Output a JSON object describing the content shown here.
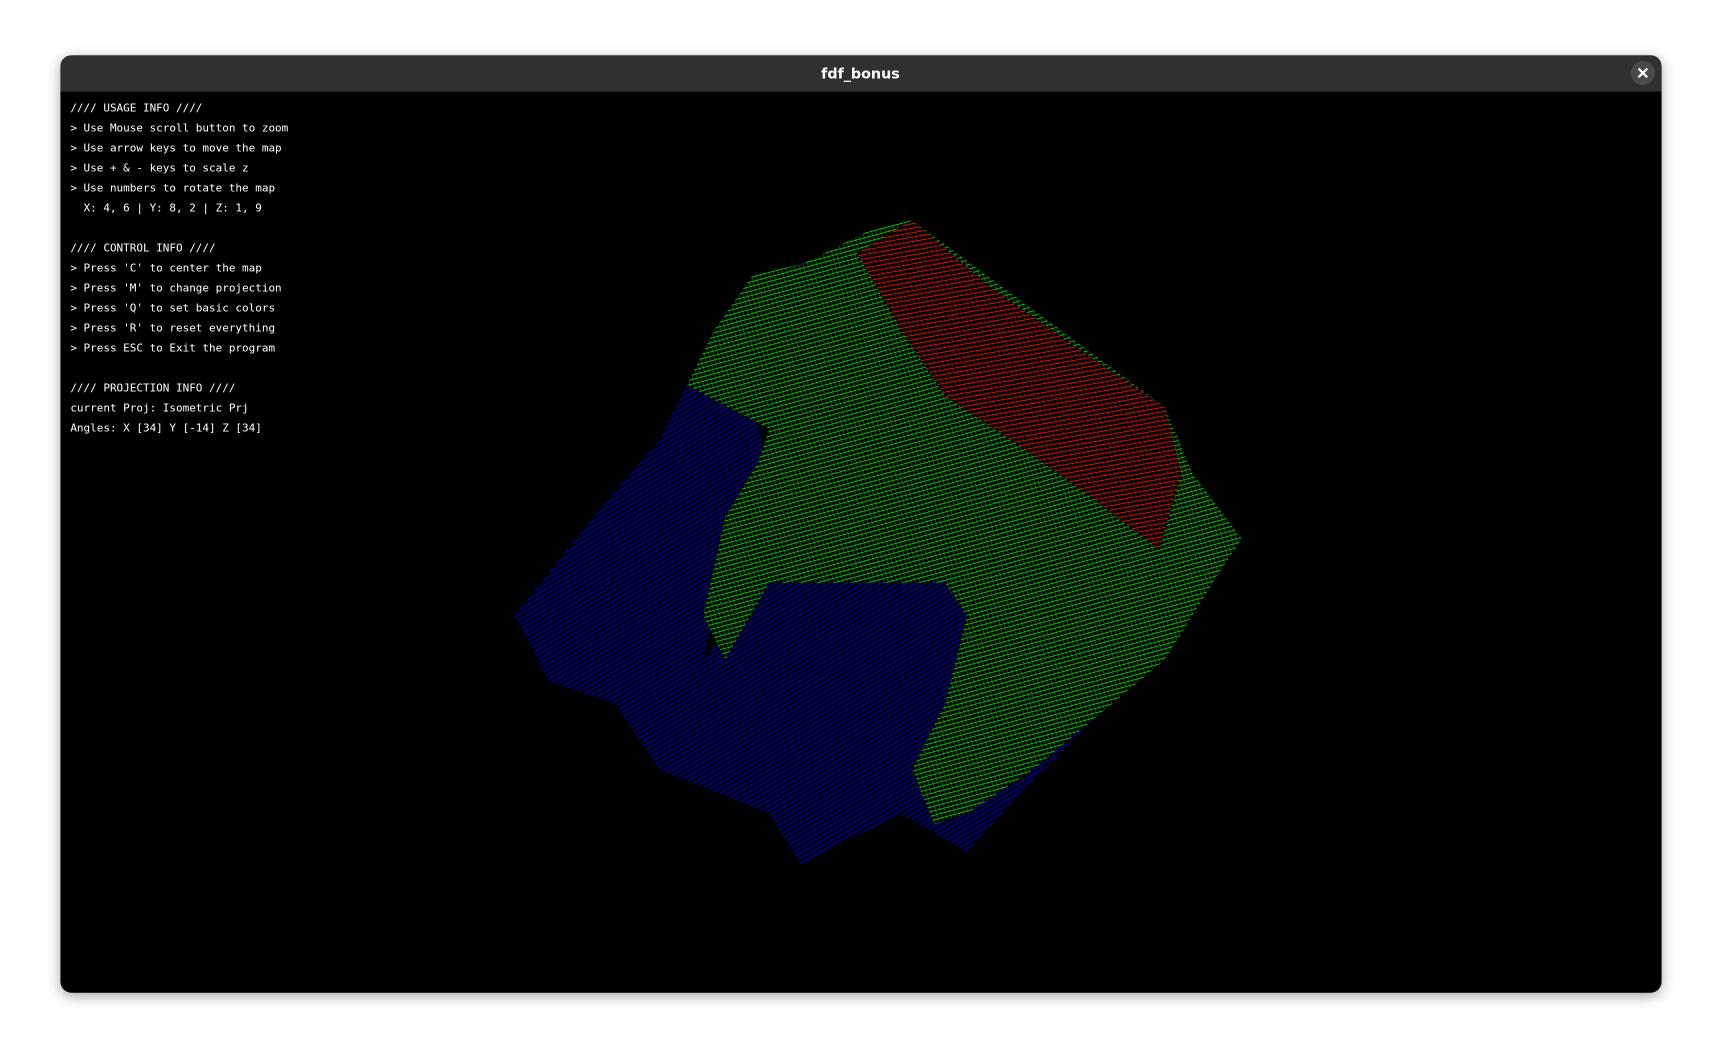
{
  "window": {
    "title": "fdf_bonus"
  },
  "usage": {
    "heading": "//// USAGE INFO ////",
    "lines": [
      "> Use Mouse scroll button to zoom",
      "> Use arrow keys to move the map",
      "> Use + & - keys to scale z",
      "> Use numbers to rotate the map",
      "  X: 4, 6 | Y: 8, 2 | Z: 1, 9"
    ]
  },
  "control": {
    "heading": "//// CONTROL INFO ////",
    "lines": [
      "> Press 'C' to center the map",
      "> Press 'M' to change projection",
      "> Press 'Q' to set basic colors",
      "> Press 'R' to reset everything",
      "> Press ESC to Exit the program"
    ]
  },
  "projection": {
    "heading": "//// PROJECTION INFO ////",
    "lines": [
      "current Proj: Isometric Prj",
      "Angles: X [34] Y [-14] Z [34]"
    ]
  }
}
